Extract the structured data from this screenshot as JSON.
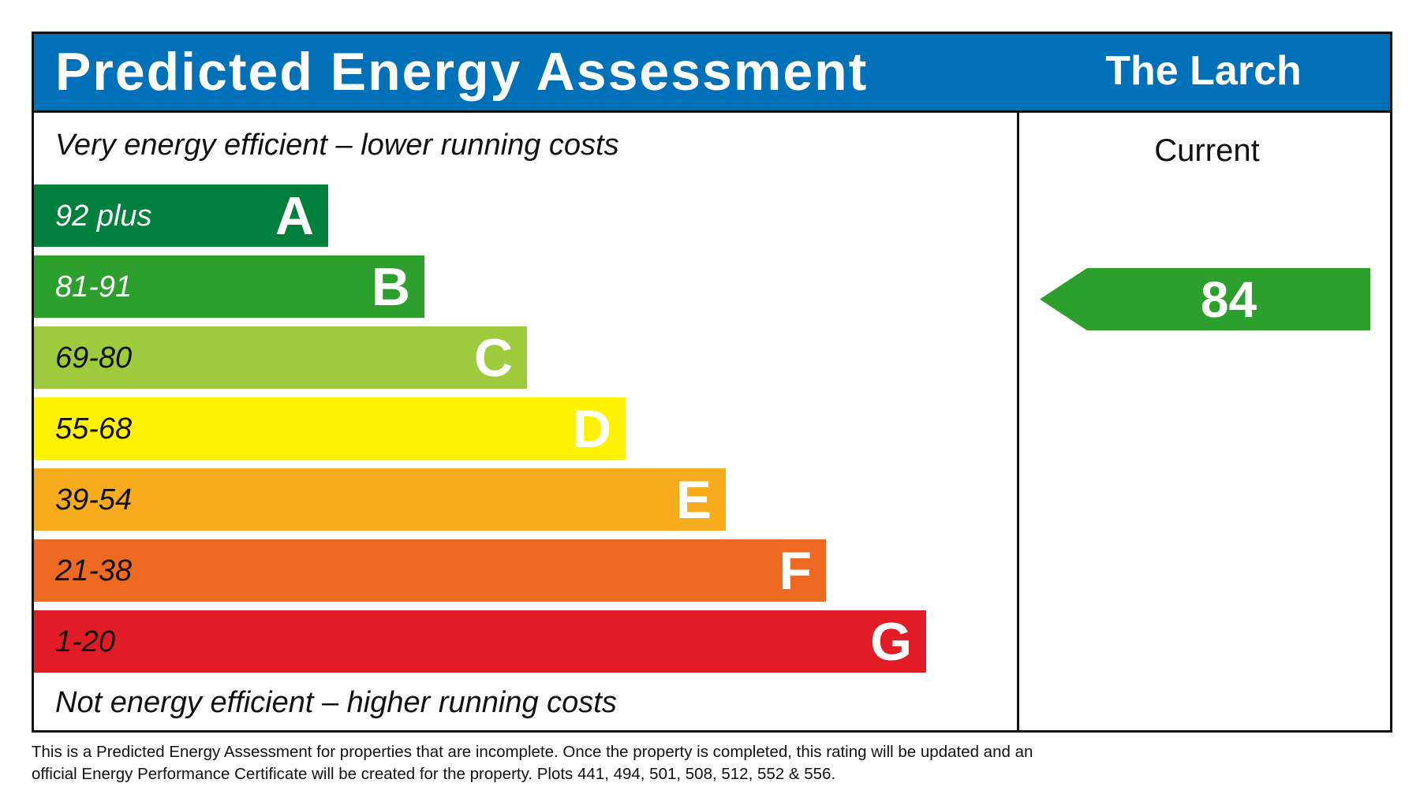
{
  "header": {
    "title": "Predicted Energy Assessment",
    "property": "The Larch",
    "color": "#0070b8"
  },
  "top_note": "Very energy efficient – lower running costs",
  "bottom_note": "Not energy efficient – higher running costs",
  "bands": [
    {
      "range": "92 plus",
      "letter": "A",
      "color": "#007f3d",
      "text_color": "#ffffff"
    },
    {
      "range": "81-91",
      "letter": "B",
      "color": "#2c9f2c",
      "text_color": "#ffffff"
    },
    {
      "range": "69-80",
      "letter": "C",
      "color": "#9dcb3b",
      "text_color": "#111111"
    },
    {
      "range": "55-68",
      "letter": "D",
      "color": "#fff200",
      "text_color": "#111111"
    },
    {
      "range": "39-54",
      "letter": "E",
      "color": "#f7ac1d",
      "text_color": "#111111"
    },
    {
      "range": "21-38",
      "letter": "F",
      "color": "#ee6a23",
      "text_color": "#111111"
    },
    {
      "range": "1-20",
      "letter": "G",
      "color": "#e21c24",
      "text_color": "#111111"
    }
  ],
  "current": {
    "label": "Current",
    "value": "84",
    "band": "B",
    "color": "#2c9f2c"
  },
  "footer": {
    "line1": "This is a Predicted Energy Assessment for properties that are incomplete. Once the property is completed, this rating will be updated and an",
    "line2": "official Energy Performance Certificate will be created for the property. Plots 441, 494, 501, 508, 512, 552 & 556."
  }
}
